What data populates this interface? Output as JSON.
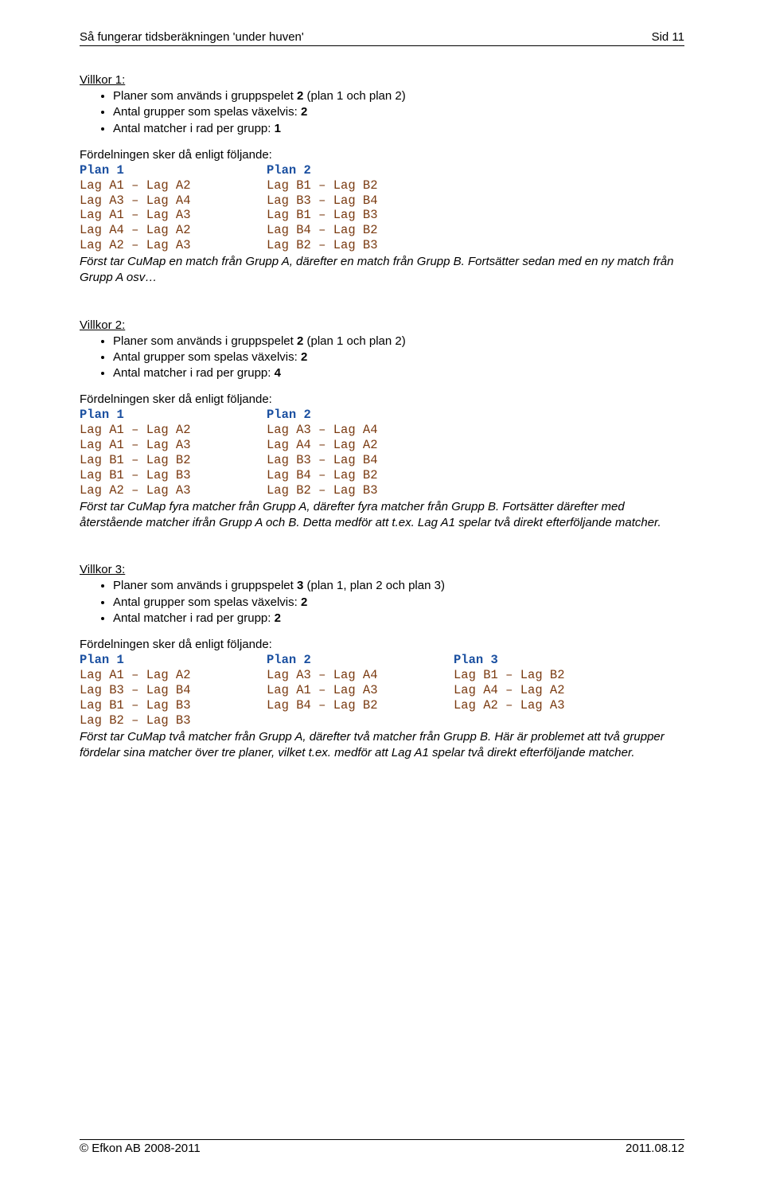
{
  "header": {
    "left": "Så fungerar tidsberäkningen 'under huven'",
    "right": "Sid 11"
  },
  "sections": [
    {
      "title": "Villkor 1:",
      "conds": [
        {
          "pre": "Planer som används i gruppspelet  ",
          "bold": "2",
          "post": " (plan 1 och plan 2)"
        },
        {
          "pre": "Antal grupper som spelas växelvis:   ",
          "bold": "2",
          "post": ""
        },
        {
          "pre": "Antal matcher i rad per grupp: ",
          "bold": "1",
          "post": ""
        }
      ],
      "intro": "Fördelningen sker då enligt följande:",
      "plans": [
        {
          "head": "Plan 1",
          "lines": [
            "Lag A1 – Lag A2",
            "Lag A3 – Lag A4",
            "Lag A1 – Lag A3",
            "Lag A4 – Lag A2",
            "Lag A2 – Lag A3"
          ]
        },
        {
          "head": "Plan 2",
          "lines": [
            "Lag B1 – Lag B2",
            "Lag B3 – Lag B4",
            "Lag B1 – Lag B3",
            "Lag B4 – Lag B2",
            "Lag B2 – Lag B3"
          ]
        }
      ],
      "expl": "Först tar CuMap en match från Grupp A, därefter en match från Grupp B. Fortsätter sedan med en ny match från Grupp A osv…"
    },
    {
      "title": "Villkor 2:",
      "conds": [
        {
          "pre": "Planer som används i gruppspelet  ",
          "bold": "2",
          "post": " (plan 1 och plan 2)"
        },
        {
          "pre": "Antal grupper som spelas växelvis:   ",
          "bold": "2",
          "post": ""
        },
        {
          "pre": "Antal matcher i rad per grupp: ",
          "bold": "4",
          "post": ""
        }
      ],
      "intro": "Fördelningen sker då enligt följande:",
      "plans": [
        {
          "head": "Plan 1",
          "lines": [
            "Lag A1 – Lag A2",
            "Lag A1 – Lag A3",
            "Lag B1 – Lag B2",
            "Lag B1 – Lag B3",
            "Lag A2 – Lag A3"
          ]
        },
        {
          "head": "Plan 2",
          "lines": [
            "Lag A3 – Lag A4",
            "Lag A4 – Lag A2",
            "Lag B3 – Lag B4",
            "Lag B4 – Lag B2",
            "Lag B2 – Lag B3"
          ]
        }
      ],
      "expl": "Först tar CuMap fyra matcher från Grupp A, därefter fyra matcher från Grupp B. Fortsätter därefter med återstående matcher ifrån Grupp A och B. Detta medför att t.ex. Lag A1 spelar två direkt efterföljande matcher."
    },
    {
      "title": "Villkor 3:",
      "conds": [
        {
          "pre": "Planer som används i gruppspelet  ",
          "bold": "3",
          "post": " (plan 1, plan 2 och plan 3)"
        },
        {
          "pre": "Antal grupper som spelas växelvis:   ",
          "bold": "2",
          "post": ""
        },
        {
          "pre": "Antal matcher i rad per grupp: ",
          "bold": "2",
          "post": ""
        }
      ],
      "intro": "Fördelningen sker då enligt följande:",
      "plans": [
        {
          "head": "Plan 1",
          "lines": [
            "Lag A1 – Lag A2",
            "Lag B3 – Lag B4",
            "Lag B1 – Lag B3",
            "Lag B2 – Lag B3"
          ]
        },
        {
          "head": "Plan 2",
          "lines": [
            "Lag A3 – Lag A4",
            "Lag A1 – Lag A3",
            "Lag B4 – Lag B2",
            ""
          ]
        },
        {
          "head": "Plan 3",
          "lines": [
            "Lag B1 – Lag B2",
            "Lag A4 – Lag A2",
            "Lag A2 – Lag A3",
            ""
          ]
        }
      ],
      "expl": "Först tar CuMap två matcher från Grupp A, därefter två matcher från Grupp B. Här är problemet att två grupper fördelar sina matcher över tre planer, vilket t.ex. medför att Lag A1 spelar två direkt efterföljande matcher."
    }
  ],
  "footer": {
    "left": "© Efkon AB 2008-2011",
    "right": "2011.08.12"
  }
}
